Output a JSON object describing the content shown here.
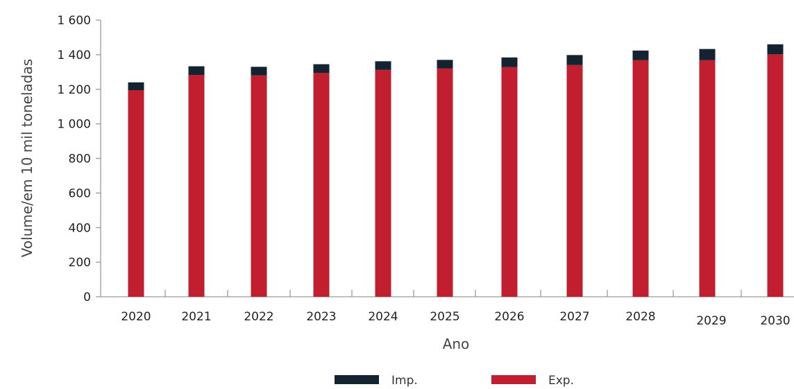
{
  "chart_data": {
    "type": "bar",
    "stacked": true,
    "title": "",
    "xlabel": "Ano",
    "ylabel": "Volume/em 10 mil toneladas",
    "ylim": [
      0,
      1600
    ],
    "yticks": [
      "0",
      "200",
      "400",
      "600",
      "800",
      "1 000",
      "1 200",
      "1 400",
      "1 600"
    ],
    "ytick_values": [
      0,
      200,
      400,
      600,
      800,
      1000,
      1200,
      1400,
      1600
    ],
    "categories": [
      "2020",
      "2021",
      "2022",
      "2023",
      "2024",
      "2025",
      "2026",
      "2027",
      "2028",
      "2029",
      "2030"
    ],
    "series": [
      {
        "name": "Exp.",
        "color": "#c11e2f",
        "values": [
          1195,
          1283,
          1280,
          1295,
          1312,
          1320,
          1328,
          1340,
          1368,
          1368,
          1402
        ]
      },
      {
        "name": "Imp.",
        "color": "#13232f",
        "values": [
          45,
          50,
          50,
          50,
          50,
          50,
          56,
          58,
          56,
          65,
          58
        ]
      }
    ],
    "legend_order": [
      "Imp.",
      "Exp."
    ],
    "legend_position": "bottom",
    "grid": false
  }
}
